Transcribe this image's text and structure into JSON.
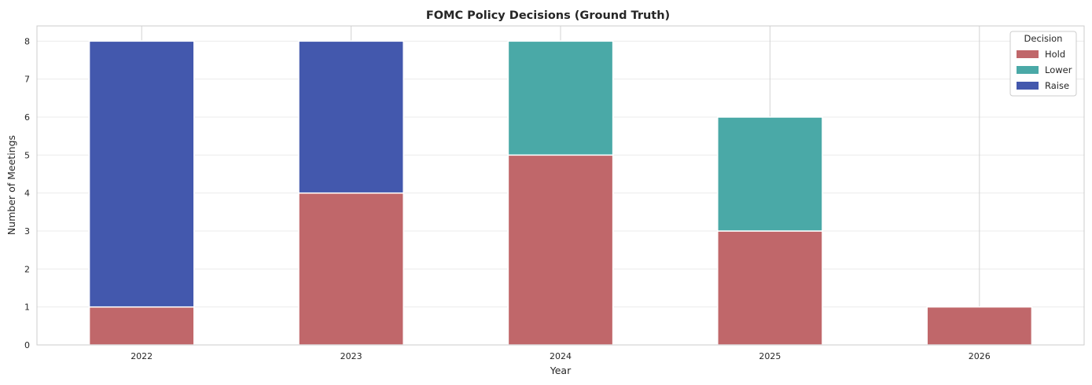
{
  "chart_data": {
    "type": "bar",
    "stacked": true,
    "title": "FOMC Policy Decisions (Ground Truth)",
    "xlabel": "Year",
    "ylabel": "Number of Meetings",
    "categories": [
      "2022",
      "2023",
      "2024",
      "2025",
      "2026"
    ],
    "yticks": [
      "0",
      "1",
      "2",
      "3",
      "4",
      "5",
      "6",
      "7",
      "8"
    ],
    "ylim": [
      0,
      8.4
    ],
    "grid": true,
    "legend": {
      "title": "Decision",
      "placement": "top-right"
    },
    "series": [
      {
        "name": "Hold",
        "color": "#c0676a",
        "values": [
          1,
          4,
          5,
          3,
          1
        ]
      },
      {
        "name": "Lower",
        "color": "#4aa9a7",
        "values": [
          0,
          0,
          3,
          3,
          0
        ]
      },
      {
        "name": "Raise",
        "color": "#4358ad",
        "values": [
          7,
          4,
          0,
          0,
          0
        ]
      }
    ]
  }
}
